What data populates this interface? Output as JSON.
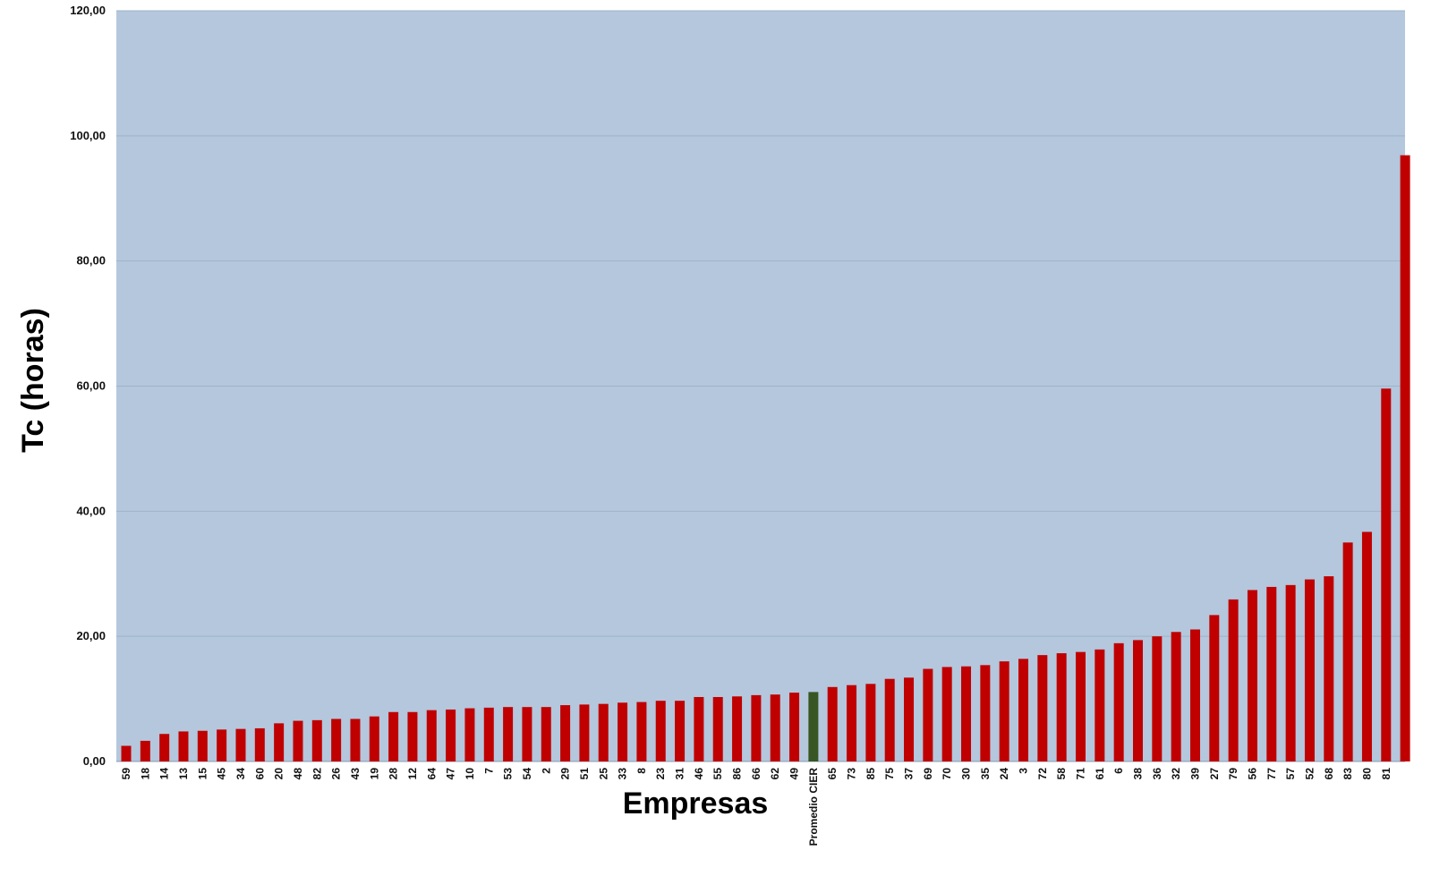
{
  "chart_data": {
    "type": "bar",
    "xlabel": "Empresas",
    "ylabel": "Tc (horas)",
    "ylim": [
      0,
      120
    ],
    "yticks": [
      "0,00",
      "20,00",
      "40,00",
      "60,00",
      "80,00",
      "100,00",
      "120,00"
    ],
    "grid": true,
    "categories": [
      "59",
      "18",
      "14",
      "13",
      "15",
      "45",
      "34",
      "60",
      "20",
      "48",
      "82",
      "26",
      "43",
      "19",
      "28",
      "12",
      "64",
      "47",
      "10",
      "7",
      "53",
      "54",
      "2",
      "29",
      "51",
      "25",
      "33",
      "8",
      "23",
      "31",
      "46",
      "55",
      "86",
      "66",
      "62",
      "49",
      "Promedio CIER",
      "65",
      "73",
      "85",
      "75",
      "37",
      "69",
      "70",
      "30",
      "35",
      "24",
      "3",
      "72",
      "58",
      "71",
      "61",
      "6",
      "38",
      "36",
      "32",
      "39",
      "27",
      "79",
      "56",
      "77",
      "57",
      "52",
      "68",
      "83",
      "80",
      "81",
      ""
    ],
    "values": [
      2.5,
      3.3,
      4.4,
      4.8,
      4.9,
      5.1,
      5.2,
      5.3,
      6.1,
      6.5,
      6.6,
      6.8,
      6.8,
      7.2,
      7.9,
      7.9,
      8.2,
      8.3,
      8.5,
      8.6,
      8.7,
      8.7,
      8.7,
      9.0,
      9.1,
      9.2,
      9.4,
      9.5,
      9.7,
      9.7,
      10.3,
      10.3,
      10.4,
      10.6,
      10.7,
      11.0,
      11.1,
      11.9,
      12.2,
      12.4,
      13.2,
      13.4,
      14.8,
      15.1,
      15.2,
      15.4,
      16.0,
      16.4,
      17.0,
      17.3,
      17.5,
      17.9,
      18.9,
      19.4,
      20.0,
      20.7,
      21.1,
      23.4,
      25.9,
      27.4,
      27.9,
      28.2,
      29.1,
      29.6,
      35.0,
      36.7,
      59.6,
      96.9
    ],
    "highlight_index": 36,
    "colors": {
      "bar": "#c00000",
      "highlight": "#375623",
      "plot_background": "#b4c7dc",
      "gridline": "#9fb3c8"
    }
  }
}
